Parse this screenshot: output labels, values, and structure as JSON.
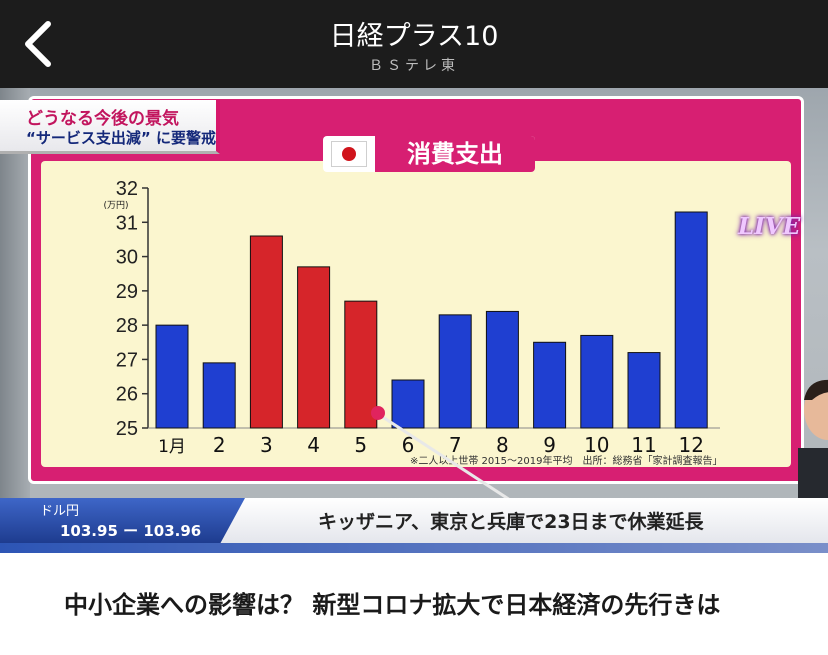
{
  "nav": {
    "title": "日経プラス10",
    "subtitle": "ＢＳテレ東",
    "back_icon": "chevron-left-icon"
  },
  "broadcast": {
    "headline_line1": "どうなる今後の景気",
    "headline_line2": "“サービス支出減” に要警戒",
    "live_badge": "LIVE",
    "source_note": "※二人以上世帯 2015〜2019年平均　出所：総務省「家計調査報告」",
    "fx_label": "ドル円",
    "fx_rate": "103.95 ー 103.96",
    "ticker_text": "キッザニア、東京と兵庫で23日まで休業延長"
  },
  "chart_data": {
    "type": "bar",
    "title": "消費支出",
    "ylabel": "(万円)",
    "ylim": [
      25,
      32
    ],
    "yticks": [
      25,
      26,
      27,
      28,
      29,
      30,
      31,
      32
    ],
    "categories": [
      "1月",
      "2",
      "3",
      "4",
      "5",
      "6",
      "7",
      "8",
      "9",
      "10",
      "11",
      "12"
    ],
    "values": [
      28.0,
      26.9,
      30.6,
      29.7,
      28.7,
      26.4,
      28.3,
      28.4,
      27.5,
      27.7,
      27.2,
      31.3
    ],
    "highlighted": [
      false,
      false,
      true,
      true,
      true,
      false,
      false,
      false,
      false,
      false,
      false,
      false
    ],
    "colors": {
      "normal": "#1f3fd1",
      "highlight": "#d6252a",
      "background": "#fbf6cf"
    }
  },
  "article": {
    "title": "中小企業への影響は？ 新型コロナ拡大で日本経済の先行きは"
  }
}
